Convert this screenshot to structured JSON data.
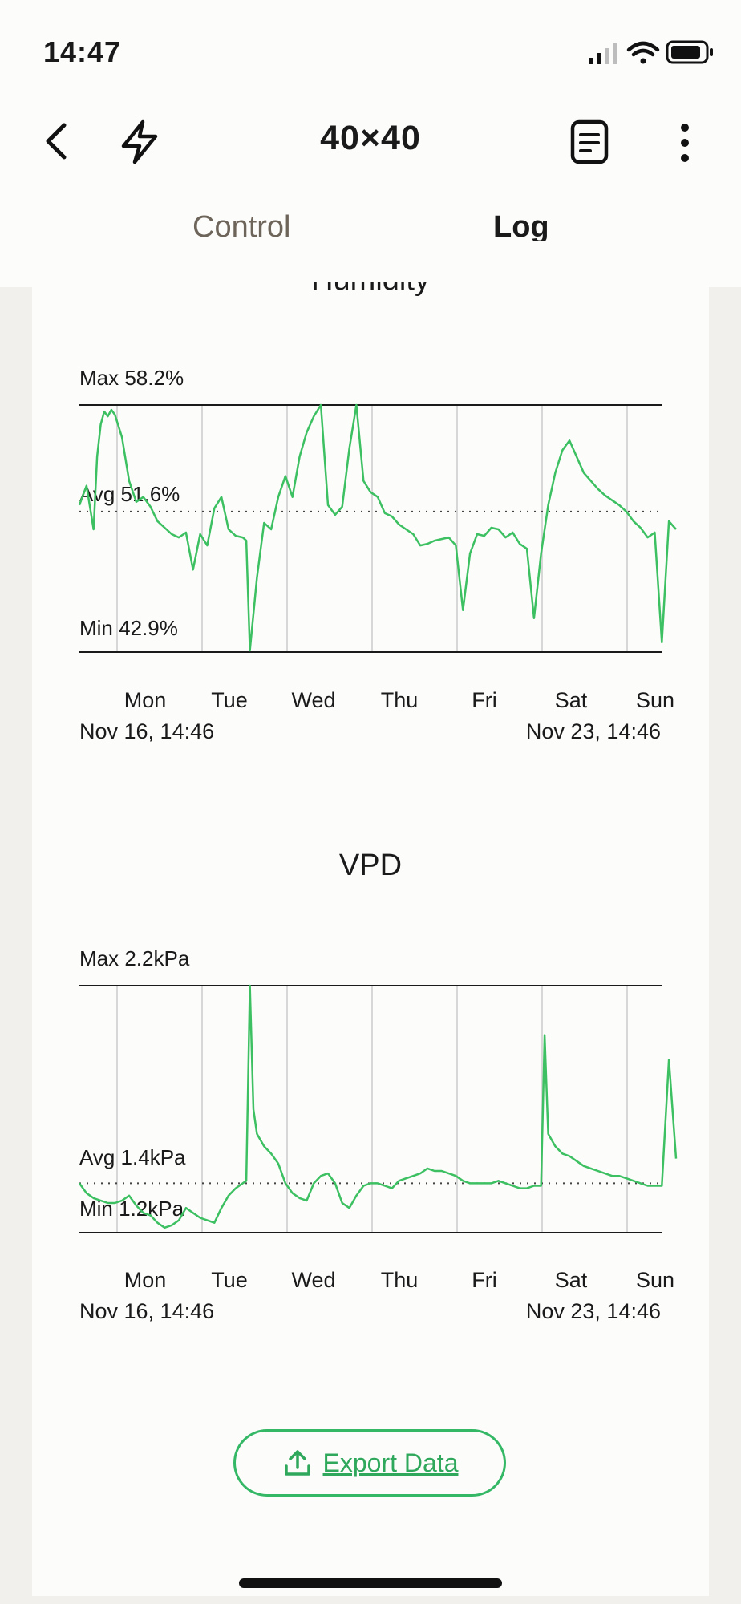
{
  "status_bar": {
    "time": "14:47"
  },
  "nav": {
    "title": "40×40"
  },
  "tabs": [
    {
      "label": "Control",
      "active": false
    },
    {
      "label": "Log",
      "active": true
    }
  ],
  "colors": {
    "accent": "#34b866",
    "line": "#3cc061"
  },
  "charts": [
    {
      "title": "Humidity",
      "max_label": "Max 58.2%",
      "avg_label": "Avg 51.6%",
      "min_label": "Min 42.9%",
      "days": [
        "Mon",
        "Tue",
        "Wed",
        "Thu",
        "Fri",
        "Sat",
        "Sun"
      ],
      "start_label": "Nov 16, 14:46",
      "end_label": "Nov 23, 14:46"
    },
    {
      "title": "VPD",
      "max_label": "Max 2.2kPa",
      "avg_label": "Avg 1.4kPa",
      "min_label": "Min 1.2kPa",
      "days": [
        "Mon",
        "Tue",
        "Wed",
        "Thu",
        "Fri",
        "Sat",
        "Sun"
      ],
      "start_label": "Nov 16, 14:46",
      "end_label": "Nov 23, 14:46"
    }
  ],
  "chart_data": [
    {
      "type": "line",
      "ylabel": "",
      "ylim": [
        42.9,
        58.2
      ],
      "avg": 51.6,
      "x_unit": "hours since Nov 16, 14:46",
      "x": [
        0,
        2,
        4,
        5,
        6,
        7,
        8,
        9,
        10,
        12,
        14,
        16,
        18,
        20,
        22,
        24,
        26,
        28,
        30,
        32,
        34,
        36,
        38,
        40,
        42,
        44,
        46,
        47,
        48,
        50,
        52,
        54,
        56,
        58,
        60,
        62,
        64,
        66,
        68,
        70,
        72,
        74,
        76,
        78,
        80,
        82,
        84,
        86,
        88,
        90,
        92,
        94,
        96,
        98,
        100,
        102,
        104,
        106,
        108,
        110,
        112,
        114,
        116,
        118,
        120,
        122,
        124,
        126,
        128,
        130,
        132,
        134,
        136,
        138,
        140,
        142,
        144,
        146,
        148,
        150,
        152,
        154,
        156,
        158,
        160,
        162,
        164,
        166,
        168
      ],
      "values": [
        52.0,
        53.2,
        50.5,
        55.0,
        57.0,
        57.8,
        57.5,
        57.9,
        57.6,
        56.2,
        53.5,
        52.2,
        52.5,
        51.9,
        51.0,
        50.6,
        50.2,
        50.0,
        50.3,
        48.0,
        50.2,
        49.5,
        51.8,
        52.5,
        50.5,
        50.1,
        50.0,
        49.8,
        43.0,
        47.5,
        50.9,
        50.5,
        52.5,
        53.8,
        52.5,
        55.0,
        56.5,
        57.5,
        58.2,
        52.0,
        51.4,
        51.9,
        55.5,
        58.2,
        53.5,
        52.8,
        52.5,
        51.5,
        51.3,
        50.8,
        50.5,
        50.2,
        49.5,
        49.6,
        49.8,
        49.9,
        50.0,
        49.5,
        45.5,
        49.0,
        50.2,
        50.1,
        50.6,
        50.5,
        50.0,
        50.3,
        49.6,
        49.3,
        45.0,
        49.0,
        52.0,
        54.0,
        55.4,
        56.0,
        55.0,
        54.0,
        53.5,
        53.0,
        52.6,
        52.3,
        52.0,
        51.6,
        51.0,
        50.6,
        50.0,
        50.3,
        43.5,
        51.0,
        50.5
      ]
    },
    {
      "type": "line",
      "ylabel": "",
      "ylim": [
        1.2,
        2.2
      ],
      "avg": 1.4,
      "x_unit": "hours since Nov 16, 14:46",
      "x": [
        0,
        2,
        4,
        6,
        8,
        10,
        12,
        14,
        16,
        18,
        20,
        22,
        24,
        26,
        28,
        30,
        32,
        34,
        36,
        38,
        40,
        42,
        44,
        46,
        47,
        48,
        49,
        50,
        52,
        54,
        56,
        58,
        60,
        62,
        64,
        66,
        68,
        70,
        72,
        74,
        76,
        78,
        80,
        82,
        84,
        86,
        88,
        90,
        92,
        94,
        96,
        98,
        100,
        102,
        104,
        106,
        108,
        110,
        112,
        114,
        116,
        118,
        120,
        122,
        124,
        126,
        128,
        130,
        131,
        132,
        134,
        136,
        138,
        140,
        142,
        144,
        146,
        148,
        150,
        152,
        154,
        156,
        158,
        160,
        162,
        164,
        166,
        168
      ],
      "values": [
        1.4,
        1.36,
        1.34,
        1.33,
        1.32,
        1.32,
        1.33,
        1.35,
        1.31,
        1.28,
        1.27,
        1.24,
        1.22,
        1.23,
        1.25,
        1.3,
        1.28,
        1.26,
        1.25,
        1.24,
        1.3,
        1.35,
        1.38,
        1.4,
        1.41,
        2.2,
        1.7,
        1.6,
        1.55,
        1.52,
        1.48,
        1.4,
        1.36,
        1.34,
        1.33,
        1.4,
        1.43,
        1.44,
        1.4,
        1.32,
        1.3,
        1.35,
        1.39,
        1.4,
        1.4,
        1.39,
        1.38,
        1.41,
        1.42,
        1.43,
        1.44,
        1.46,
        1.45,
        1.45,
        1.44,
        1.43,
        1.41,
        1.4,
        1.4,
        1.4,
        1.4,
        1.41,
        1.4,
        1.39,
        1.38,
        1.38,
        1.39,
        1.39,
        2.0,
        1.6,
        1.55,
        1.52,
        1.51,
        1.49,
        1.47,
        1.46,
        1.45,
        1.44,
        1.43,
        1.43,
        1.42,
        1.41,
        1.4,
        1.39,
        1.39,
        1.39,
        1.9,
        1.5
      ]
    }
  ],
  "export": {
    "label": "Export Data"
  },
  "icons": {
    "back": "chevron-left-icon",
    "bolt": "lightning-bolt-icon",
    "notes": "document-list-icon",
    "more": "more-vertical-icon",
    "export": "upload-icon"
  }
}
